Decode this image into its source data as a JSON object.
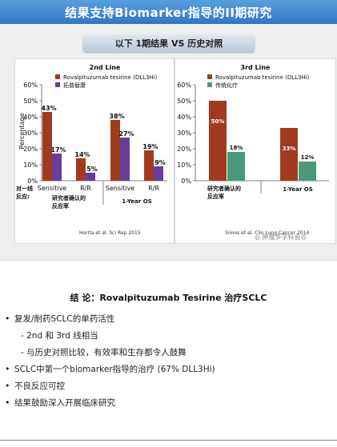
{
  "slide": {
    "title": "结果支持Biomarker指导的II期研究",
    "subtitle": "以下 1期结果 VS 历史对照",
    "watermark": "肿瘤多学科会诊",
    "colors": {
      "rova": "#a23b1e",
      "topotecan": "#6a3d9a",
      "chemo": "#4a9a7a",
      "title_bar": "#2f77c3"
    }
  },
  "chart_data": [
    {
      "type": "bar",
      "title": "2nd Line",
      "ylabel": "Percentage",
      "ylim": [
        0,
        60
      ],
      "yticks": [
        "0%",
        "10%",
        "20%",
        "30%",
        "40%",
        "50%",
        "60%"
      ],
      "row_label": "对一线\n反应:",
      "categories": [
        "Sensitive",
        "R/R",
        "Sensitive",
        "R/R"
      ],
      "groups": [
        "研究者确认的\n反应率",
        "1-Year OS"
      ],
      "series": [
        {
          "name": "Rovalpituzumab tesirine (DLL3Hi)",
          "values": [
            43,
            14,
            38,
            19
          ],
          "labels": [
            "43%",
            "14%",
            "38%",
            "19%"
          ]
        },
        {
          "name": "拓普替康",
          "values": [
            17,
            5,
            27,
            9
          ],
          "labels": [
            "17%",
            "5%",
            "27%",
            "9%"
          ]
        }
      ],
      "footnote": "Horita et al. Sci Rep 2015"
    },
    {
      "type": "bar",
      "title": "3rd Line",
      "ylim": [
        0,
        60
      ],
      "yticks": [
        "0%",
        "10%",
        "20%",
        "30%",
        "40%",
        "50%",
        "60%"
      ],
      "categories": [
        "研究者确认的\n反应率",
        "1-Year OS"
      ],
      "series": [
        {
          "name": "Rovalpituzumab tesirine (DLL3Hi)",
          "values": [
            50,
            33
          ],
          "labels": [
            "50%",
            "33%"
          ]
        },
        {
          "name": "传统化疗",
          "values": [
            18,
            12
          ],
          "labels": [
            "18%",
            "12%"
          ]
        }
      ],
      "footnote": "Simos et al. Clin Lung Cancer 2014"
    }
  ],
  "conclusions": {
    "title": "结 论：Rovalpituzumab Tesirine 治疗SCLC",
    "items": [
      {
        "text": "复发/耐药SCLC的单药活性",
        "sub": false
      },
      {
        "text": "- 2nd 和 3rd 线相当",
        "sub": true
      },
      {
        "text": "- 与历史对照比较，有效率和生存都令人鼓舞",
        "sub": true
      },
      {
        "text": "SCLC中第一个biomarker指导的治疗 (67% DLL3Hi)",
        "sub": false
      },
      {
        "text": "不良反应可控",
        "sub": false
      },
      {
        "text": "结果鼓励深入开展临床研究",
        "sub": false
      }
    ]
  }
}
